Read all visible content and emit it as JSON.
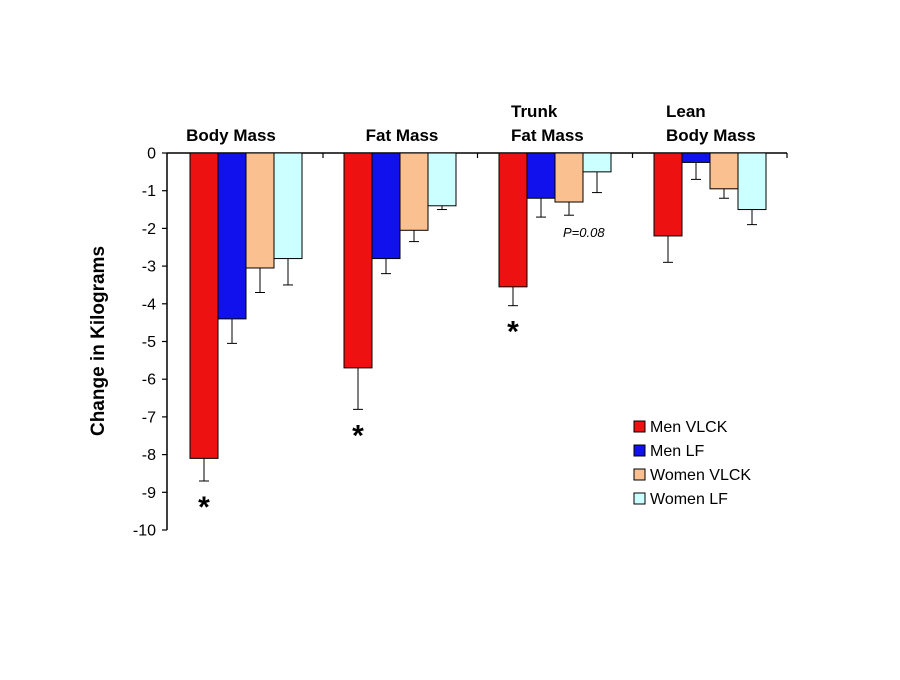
{
  "chart_data": {
    "type": "bar",
    "title": "",
    "xlabel": "",
    "ylabel": "Change in Kilograms",
    "ylim": [
      -10,
      0
    ],
    "yticks": [
      0,
      -1,
      -2,
      -3,
      -4,
      -5,
      -6,
      -7,
      -8,
      -9,
      -10
    ],
    "categories": [
      [
        "Body Mass"
      ],
      [
        "Fat Mass"
      ],
      [
        "Trunk",
        "Fat Mass"
      ],
      [
        "Lean",
        "Body Mass"
      ]
    ],
    "series": [
      {
        "name": "Men VLCK",
        "color": "#ee1111",
        "values": [
          -8.1,
          -5.7,
          -3.55,
          -2.2
        ],
        "errors": [
          0.6,
          1.1,
          0.5,
          0.7
        ]
      },
      {
        "name": "Men LF",
        "color": "#1111ee",
        "values": [
          -4.4,
          -2.8,
          -1.2,
          -0.25
        ],
        "errors": [
          0.65,
          0.4,
          0.5,
          0.45
        ]
      },
      {
        "name": "Women VLCK",
        "color": "#fac090",
        "values": [
          -3.05,
          -2.05,
          -1.3,
          -0.95
        ],
        "errors": [
          0.65,
          0.3,
          0.35,
          0.25
        ]
      },
      {
        "name": "Women LF",
        "color": "#ccffff",
        "values": [
          -2.8,
          -1.4,
          -0.5,
          -1.5
        ],
        "errors": [
          0.7,
          0.1,
          0.55,
          0.4
        ]
      }
    ],
    "significance": [
      {
        "category": 0,
        "series": 0,
        "symbol": "*"
      },
      {
        "category": 1,
        "series": 0,
        "symbol": "*"
      },
      {
        "category": 2,
        "series": 0,
        "symbol": "*"
      }
    ],
    "annotations": [
      {
        "category": 2,
        "series": 2,
        "text": "P=0.08"
      }
    ],
    "legend_position": "bottom-right",
    "grid": false
  }
}
